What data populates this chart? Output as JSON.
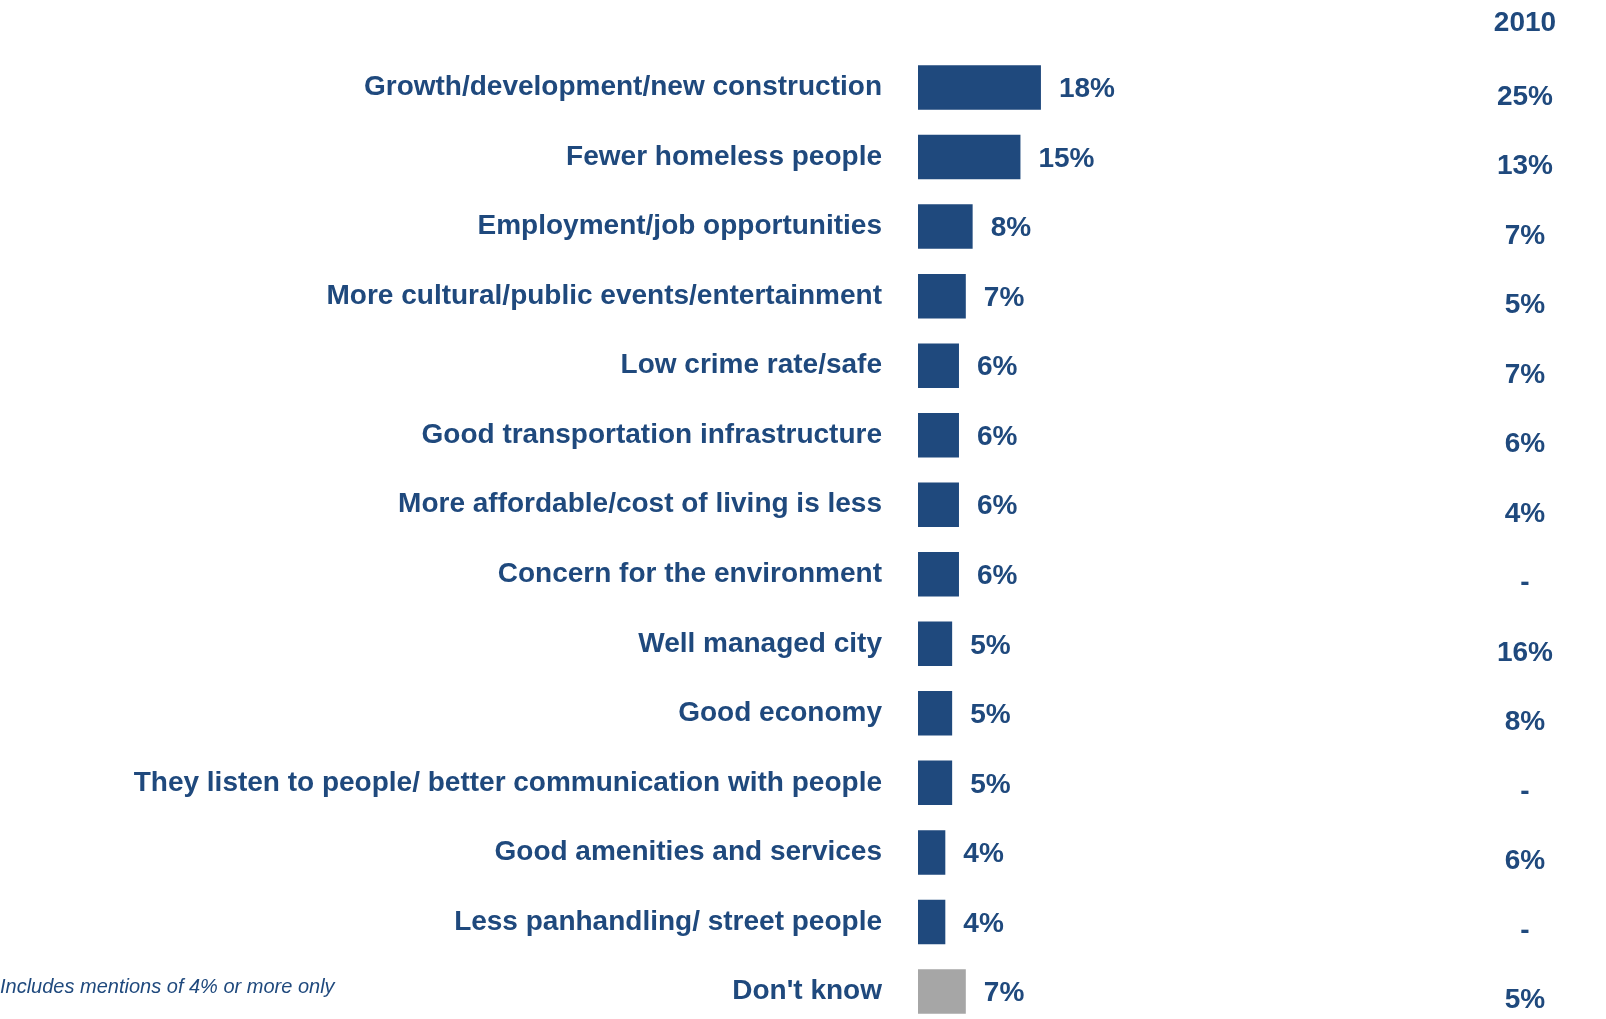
{
  "chart_data": [
    {
      "type": "bar",
      "orientation": "horizontal",
      "legend": false,
      "tick_labels": "y",
      "categories": [
        "Growth/development/new construction",
        "Fewer homeless people",
        "Employment/job opportunities",
        "More cultural/public events/entertainment",
        "Low crime rate/safe",
        "Good transportation infrastructure",
        "More affordable/cost of living is less",
        "Concern for the environment",
        "Well managed city",
        "Good economy",
        "They listen to people/ better communication with people",
        "Good amenities and services",
        "Less panhandling/ street people",
        "Don't know"
      ],
      "values": [
        18,
        15,
        8,
        7,
        6,
        6,
        6,
        6,
        5,
        5,
        5,
        4,
        4,
        7
      ],
      "colors": [
        "#1f497d",
        "#1f497d",
        "#1f497d",
        "#1f497d",
        "#1f497d",
        "#1f497d",
        "#1f497d",
        "#1f497d",
        "#1f497d",
        "#1f497d",
        "#1f497d",
        "#1f497d",
        "#1f497d",
        "#a6a6a6"
      ],
      "value_labels": [
        "18%",
        "15%",
        "8%",
        "7%",
        "6%",
        "6%",
        "6%",
        "6%",
        "5%",
        "5%",
        "5%",
        "4%",
        "4%",
        "7%"
      ],
      "annotations": [
        "Includes mentions of 4% or more only"
      ]
    },
    {
      "type": "other",
      "title": "2010",
      "annotations": [
        "25%",
        "13%",
        "7%",
        "5%",
        "7%",
        "6%",
        "4%",
        "-",
        "16%",
        "8%",
        "-",
        "6%",
        "-",
        "5%"
      ]
    }
  ]
}
